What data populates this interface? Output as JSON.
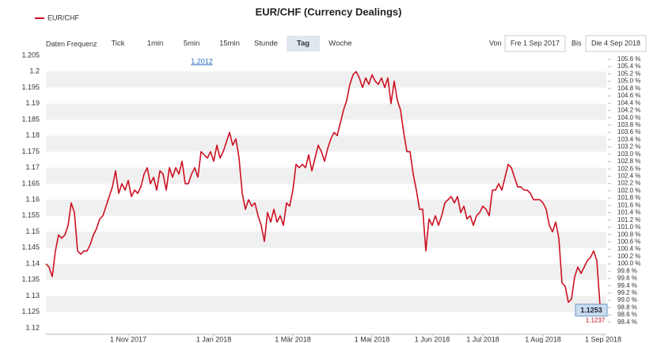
{
  "chart_data": {
    "type": "line",
    "title": "EUR/CHF (Currency Dealings)",
    "series": [
      {
        "name": "EUR/CHF",
        "color": "#cc1122",
        "values": [
          1.14,
          1.139,
          1.136,
          1.144,
          1.149,
          1.148,
          1.149,
          1.152,
          1.159,
          1.156,
          1.144,
          1.143,
          1.144,
          1.144,
          1.146,
          1.149,
          1.151,
          1.154,
          1.155,
          1.158,
          1.161,
          1.164,
          1.169,
          1.162,
          1.165,
          1.163,
          1.166,
          1.161,
          1.163,
          1.162,
          1.164,
          1.168,
          1.17,
          1.165,
          1.167,
          1.163,
          1.169,
          1.168,
          1.163,
          1.17,
          1.167,
          1.17,
          1.168,
          1.172,
          1.165,
          1.165,
          1.168,
          1.17,
          1.167,
          1.175,
          1.174,
          1.173,
          1.175,
          1.172,
          1.177,
          1.173,
          1.175,
          1.178,
          1.181,
          1.177,
          1.179,
          1.173,
          1.162,
          1.157,
          1.16,
          1.158,
          1.159,
          1.155,
          1.152,
          1.147,
          1.156,
          1.153,
          1.157,
          1.153,
          1.155,
          1.152,
          1.159,
          1.158,
          1.163,
          1.171,
          1.17,
          1.171,
          1.17,
          1.174,
          1.169,
          1.173,
          1.177,
          1.175,
          1.172,
          1.176,
          1.179,
          1.181,
          1.18,
          1.184,
          1.188,
          1.191,
          1.196,
          1.199,
          1.2,
          1.198,
          1.195,
          1.198,
          1.196,
          1.199,
          1.197,
          1.196,
          1.198,
          1.195,
          1.198,
          1.19,
          1.197,
          1.191,
          1.188,
          1.181,
          1.175,
          1.175,
          1.168,
          1.163,
          1.157,
          1.157,
          1.144,
          1.154,
          1.152,
          1.155,
          1.152,
          1.155,
          1.159,
          1.16,
          1.161,
          1.159,
          1.161,
          1.156,
          1.158,
          1.154,
          1.155,
          1.152,
          1.155,
          1.156,
          1.158,
          1.157,
          1.155,
          1.163,
          1.163,
          1.165,
          1.163,
          1.167,
          1.171,
          1.17,
          1.167,
          1.164,
          1.164,
          1.163,
          1.163,
          1.162,
          1.16,
          1.16,
          1.16,
          1.159,
          1.157,
          1.152,
          1.15,
          1.153,
          1.148,
          1.134,
          1.133,
          1.128,
          1.129,
          1.136,
          1.139,
          1.137,
          1.139,
          1.141,
          1.142,
          1.144,
          1.141,
          1.127,
          1.1237,
          1.1253
        ]
      }
    ],
    "xlim": [
      0,
      177
    ],
    "xticks": [
      {
        "value": 26,
        "label": "1 Nov 2017"
      },
      {
        "value": 53,
        "label": "1 Jan 2018"
      },
      {
        "value": 78,
        "label": "1 Mär 2018"
      },
      {
        "value": 103,
        "label": "1 Mai 2018"
      },
      {
        "value": 122,
        "label": "1 Jun 2018"
      },
      {
        "value": 138,
        "label": "1 Jul 2018"
      },
      {
        "value": 157,
        "label": "1 Aug 2018"
      },
      {
        "value": 176,
        "label": "1 Sep 2018"
      }
    ],
    "ylim": [
      1.118,
      1.207
    ],
    "yticks": [
      1.12,
      1.125,
      1.13,
      1.135,
      1.14,
      1.145,
      1.15,
      1.155,
      1.16,
      1.165,
      1.17,
      1.175,
      1.18,
      1.185,
      1.19,
      1.195,
      1.2,
      1.205
    ],
    "y2lim": [
      98.07,
      105.88
    ],
    "y2ticks": [
      {
        "value": 98.4,
        "label": "98.4 %"
      },
      {
        "value": 98.6,
        "label": "98.6 %"
      },
      {
        "value": 98.8,
        "label": "98.8 %"
      },
      {
        "value": 99.0,
        "label": "99.0 %"
      },
      {
        "value": 99.2,
        "label": "99.2 %"
      },
      {
        "value": 99.4,
        "label": "99.4 %"
      },
      {
        "value": 99.6,
        "label": "99.6 %"
      },
      {
        "value": 99.8,
        "label": "99.8 %"
      },
      {
        "value": 100.0,
        "label": "100.0 %"
      },
      {
        "value": 100.2,
        "label": "100.2 %"
      },
      {
        "value": 100.4,
        "label": "100.4 %"
      },
      {
        "value": 100.6,
        "label": "100.6 %"
      },
      {
        "value": 100.8,
        "label": "100.8 %"
      },
      {
        "value": 101.0,
        "label": "101.0 %"
      },
      {
        "value": 101.2,
        "label": "101.2 %"
      },
      {
        "value": 101.4,
        "label": "101.4 %"
      },
      {
        "value": 101.6,
        "label": "101.6 %"
      },
      {
        "value": 101.8,
        "label": "101.8 %"
      },
      {
        "value": 102.0,
        "label": "102.0 %"
      },
      {
        "value": 102.2,
        "label": "102.2 %"
      },
      {
        "value": 102.4,
        "label": "102.4 %"
      },
      {
        "value": 102.6,
        "label": "102.6 %"
      },
      {
        "value": 102.8,
        "label": "102.8 %"
      },
      {
        "value": 103.0,
        "label": "103.0 %"
      },
      {
        "value": 103.2,
        "label": "103.2 %"
      },
      {
        "value": 103.4,
        "label": "103.4 %"
      },
      {
        "value": 103.6,
        "label": "103.6 %"
      },
      {
        "value": 103.8,
        "label": "103.8 %"
      },
      {
        "value": 104.0,
        "label": "104.0 %"
      },
      {
        "value": 104.2,
        "label": "104.2 %"
      },
      {
        "value": 104.4,
        "label": "104.4 %"
      },
      {
        "value": 104.6,
        "label": "104.6 %"
      },
      {
        "value": 104.8,
        "label": "104.8 %"
      },
      {
        "value": 105.0,
        "label": "105.0 %"
      },
      {
        "value": 105.2,
        "label": "105.2 %"
      },
      {
        "value": 105.4,
        "label": "105.4 %"
      },
      {
        "value": 105.6,
        "label": "105.6 %"
      }
    ],
    "grid": true,
    "annotations": [
      "1.2012",
      "1.1253",
      "1.1237"
    ]
  },
  "controls": {
    "frequency_label": "Daten Frequenz",
    "buttons": [
      "Tick",
      "1min",
      "5min",
      "15min",
      "Stunde",
      "Tag",
      "Woche"
    ],
    "from_label": "Von",
    "from_date": "Fre 1 Sep 2017",
    "to_label": "Bis",
    "to_date": "Die 4 Sep 2018"
  }
}
